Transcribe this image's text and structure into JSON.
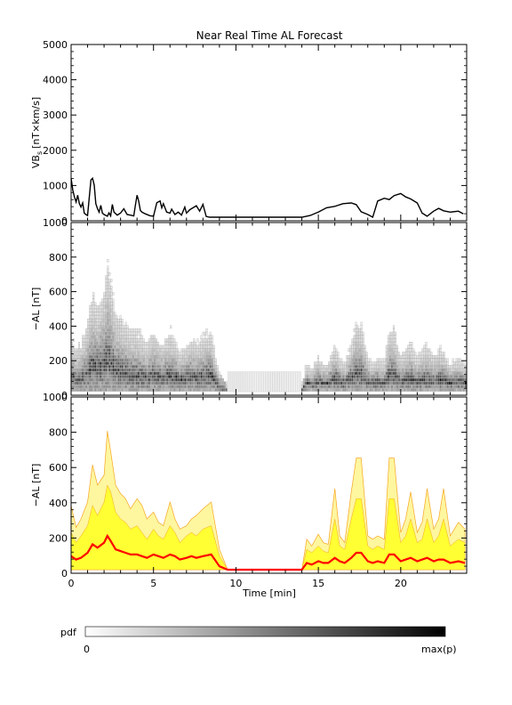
{
  "title": "Near Real Time AL Forecast",
  "chart_data": [
    {
      "type": "line",
      "panel": "vbs",
      "ylabel": "VB",
      "ylabel_sub": "s",
      "ylabel_unit": "[nT×km/s]",
      "ylim": [
        0,
        5000
      ],
      "yticks": [
        "0",
        "1000",
        "2000",
        "3000",
        "4000",
        "5000"
      ],
      "xlim": [
        0,
        24
      ],
      "x": [
        0,
        0.1,
        0.2,
        0.3,
        0.4,
        0.5,
        0.6,
        0.7,
        0.8,
        0.9,
        1.0,
        1.2,
        1.3,
        1.4,
        1.5,
        1.6,
        1.7,
        1.8,
        1.9,
        2.0,
        2.2,
        2.3,
        2.4,
        2.5,
        2.6,
        2.8,
        3.0,
        3.2,
        3.4,
        3.6,
        3.8,
        3.9,
        4.0,
        4.1,
        4.2,
        4.3,
        4.5,
        4.7,
        4.8,
        5.0,
        5.2,
        5.4,
        5.5,
        5.6,
        5.8,
        6.0,
        6.1,
        6.3,
        6.5,
        6.7,
        6.9,
        7.0,
        7.2,
        7.4,
        7.6,
        7.8,
        8.0,
        8.2,
        8.4,
        9,
        10,
        11,
        12,
        13,
        14,
        14.5,
        15,
        15.5,
        16,
        16.5,
        17,
        17.3,
        17.6,
        18,
        18.3,
        18.6,
        19,
        19.3,
        19.6,
        20,
        20.3,
        20.6,
        21,
        21.3,
        21.6,
        22,
        22.3,
        22.6,
        23,
        23.5,
        23.8
      ],
      "y": [
        1150,
        800,
        600,
        450,
        650,
        400,
        300,
        420,
        120,
        80,
        50,
        1100,
        1150,
        950,
        400,
        250,
        150,
        350,
        120,
        80,
        30,
        130,
        40,
        380,
        150,
        60,
        120,
        250,
        80,
        60,
        40,
        350,
        650,
        480,
        200,
        150,
        100,
        60,
        40,
        30,
        430,
        480,
        280,
        400,
        150,
        120,
        240,
        80,
        150,
        60,
        300,
        120,
        220,
        280,
        340,
        180,
        380,
        20,
        0,
        0,
        0,
        0,
        0,
        0,
        0,
        50,
        150,
        280,
        320,
        400,
        420,
        370,
        160,
        80,
        0,
        480,
        560,
        520,
        640,
        700,
        600,
        540,
        420,
        120,
        30,
        180,
        260,
        190,
        150,
        180,
        100
      ],
      "color": "#000000"
    },
    {
      "type": "heatmap",
      "panel": "pdf",
      "ylabel": "−AL [nT]",
      "ylim": [
        0,
        1000
      ],
      "yticks": [
        "0",
        "200",
        "400",
        "600",
        "800",
        "1000"
      ],
      "xlim": [
        0,
        24
      ],
      "colorbar": {
        "label": "pdf",
        "min_label": "0",
        "max_label": "max(p)"
      }
    },
    {
      "type": "area",
      "panel": "forecast",
      "ylabel": "−AL [nT]",
      "xlabel": "Time [min]",
      "ylim": [
        0,
        1000
      ],
      "yticks": [
        "0",
        "200",
        "400",
        "600",
        "800",
        "1000"
      ],
      "xlim": [
        0,
        24
      ],
      "xticks": [
        "0",
        "5",
        "10",
        "15",
        "20"
      ],
      "x": [
        0,
        0.3,
        0.6,
        1.0,
        1.3,
        1.6,
        2.0,
        2.2,
        2.4,
        2.7,
        3.0,
        3.3,
        3.6,
        4.0,
        4.3,
        4.6,
        5.0,
        5.3,
        5.6,
        6.0,
        6.3,
        6.6,
        7.0,
        7.3,
        7.6,
        8.0,
        8.5,
        9.0,
        9.5,
        10,
        11,
        12,
        13,
        14,
        14.3,
        14.6,
        15,
        15.3,
        15.6,
        16,
        16.3,
        16.6,
        17,
        17.3,
        17.6,
        18,
        18.3,
        18.6,
        19,
        19.3,
        19.6,
        20,
        20.3,
        20.6,
        21,
        21.3,
        21.6,
        22,
        22.3,
        22.6,
        23,
        23.5,
        23.9
      ],
      "upper": [
        380,
        250,
        300,
        400,
        620,
        500,
        560,
        820,
        700,
        500,
        450,
        420,
        360,
        420,
        380,
        300,
        340,
        280,
        260,
        400,
        300,
        240,
        260,
        300,
        320,
        360,
        400,
        120,
        0,
        0,
        0,
        0,
        0,
        0,
        180,
        140,
        210,
        160,
        150,
        480,
        200,
        160,
        460,
        660,
        660,
        200,
        180,
        200,
        180,
        660,
        660,
        220,
        300,
        460,
        220,
        280,
        480,
        240,
        300,
        480,
        200,
        280,
        240
      ],
      "inner": [
        220,
        160,
        200,
        260,
        380,
        320,
        400,
        500,
        460,
        340,
        300,
        280,
        240,
        260,
        220,
        180,
        240,
        200,
        180,
        260,
        220,
        160,
        200,
        220,
        200,
        240,
        260,
        80,
        0,
        0,
        0,
        0,
        0,
        0,
        120,
        100,
        140,
        110,
        100,
        300,
        140,
        120,
        300,
        420,
        420,
        140,
        120,
        140,
        120,
        420,
        420,
        160,
        200,
        300,
        160,
        180,
        300,
        160,
        200,
        300,
        140,
        180,
        160
      ],
      "mean": [
        80,
        60,
        70,
        100,
        150,
        130,
        160,
        200,
        170,
        120,
        110,
        100,
        90,
        90,
        80,
        70,
        90,
        80,
        70,
        90,
        80,
        60,
        70,
        80,
        70,
        80,
        90,
        20,
        0,
        0,
        0,
        0,
        0,
        0,
        40,
        30,
        50,
        40,
        40,
        70,
        50,
        40,
        70,
        100,
        100,
        50,
        40,
        50,
        40,
        90,
        90,
        50,
        60,
        70,
        50,
        60,
        70,
        50,
        60,
        60,
        40,
        50,
        40
      ],
      "colors": {
        "outer": "#fff6a0",
        "inner": "#ffff33",
        "edge": "#f5a623",
        "mean": "#ff0000"
      }
    }
  ]
}
